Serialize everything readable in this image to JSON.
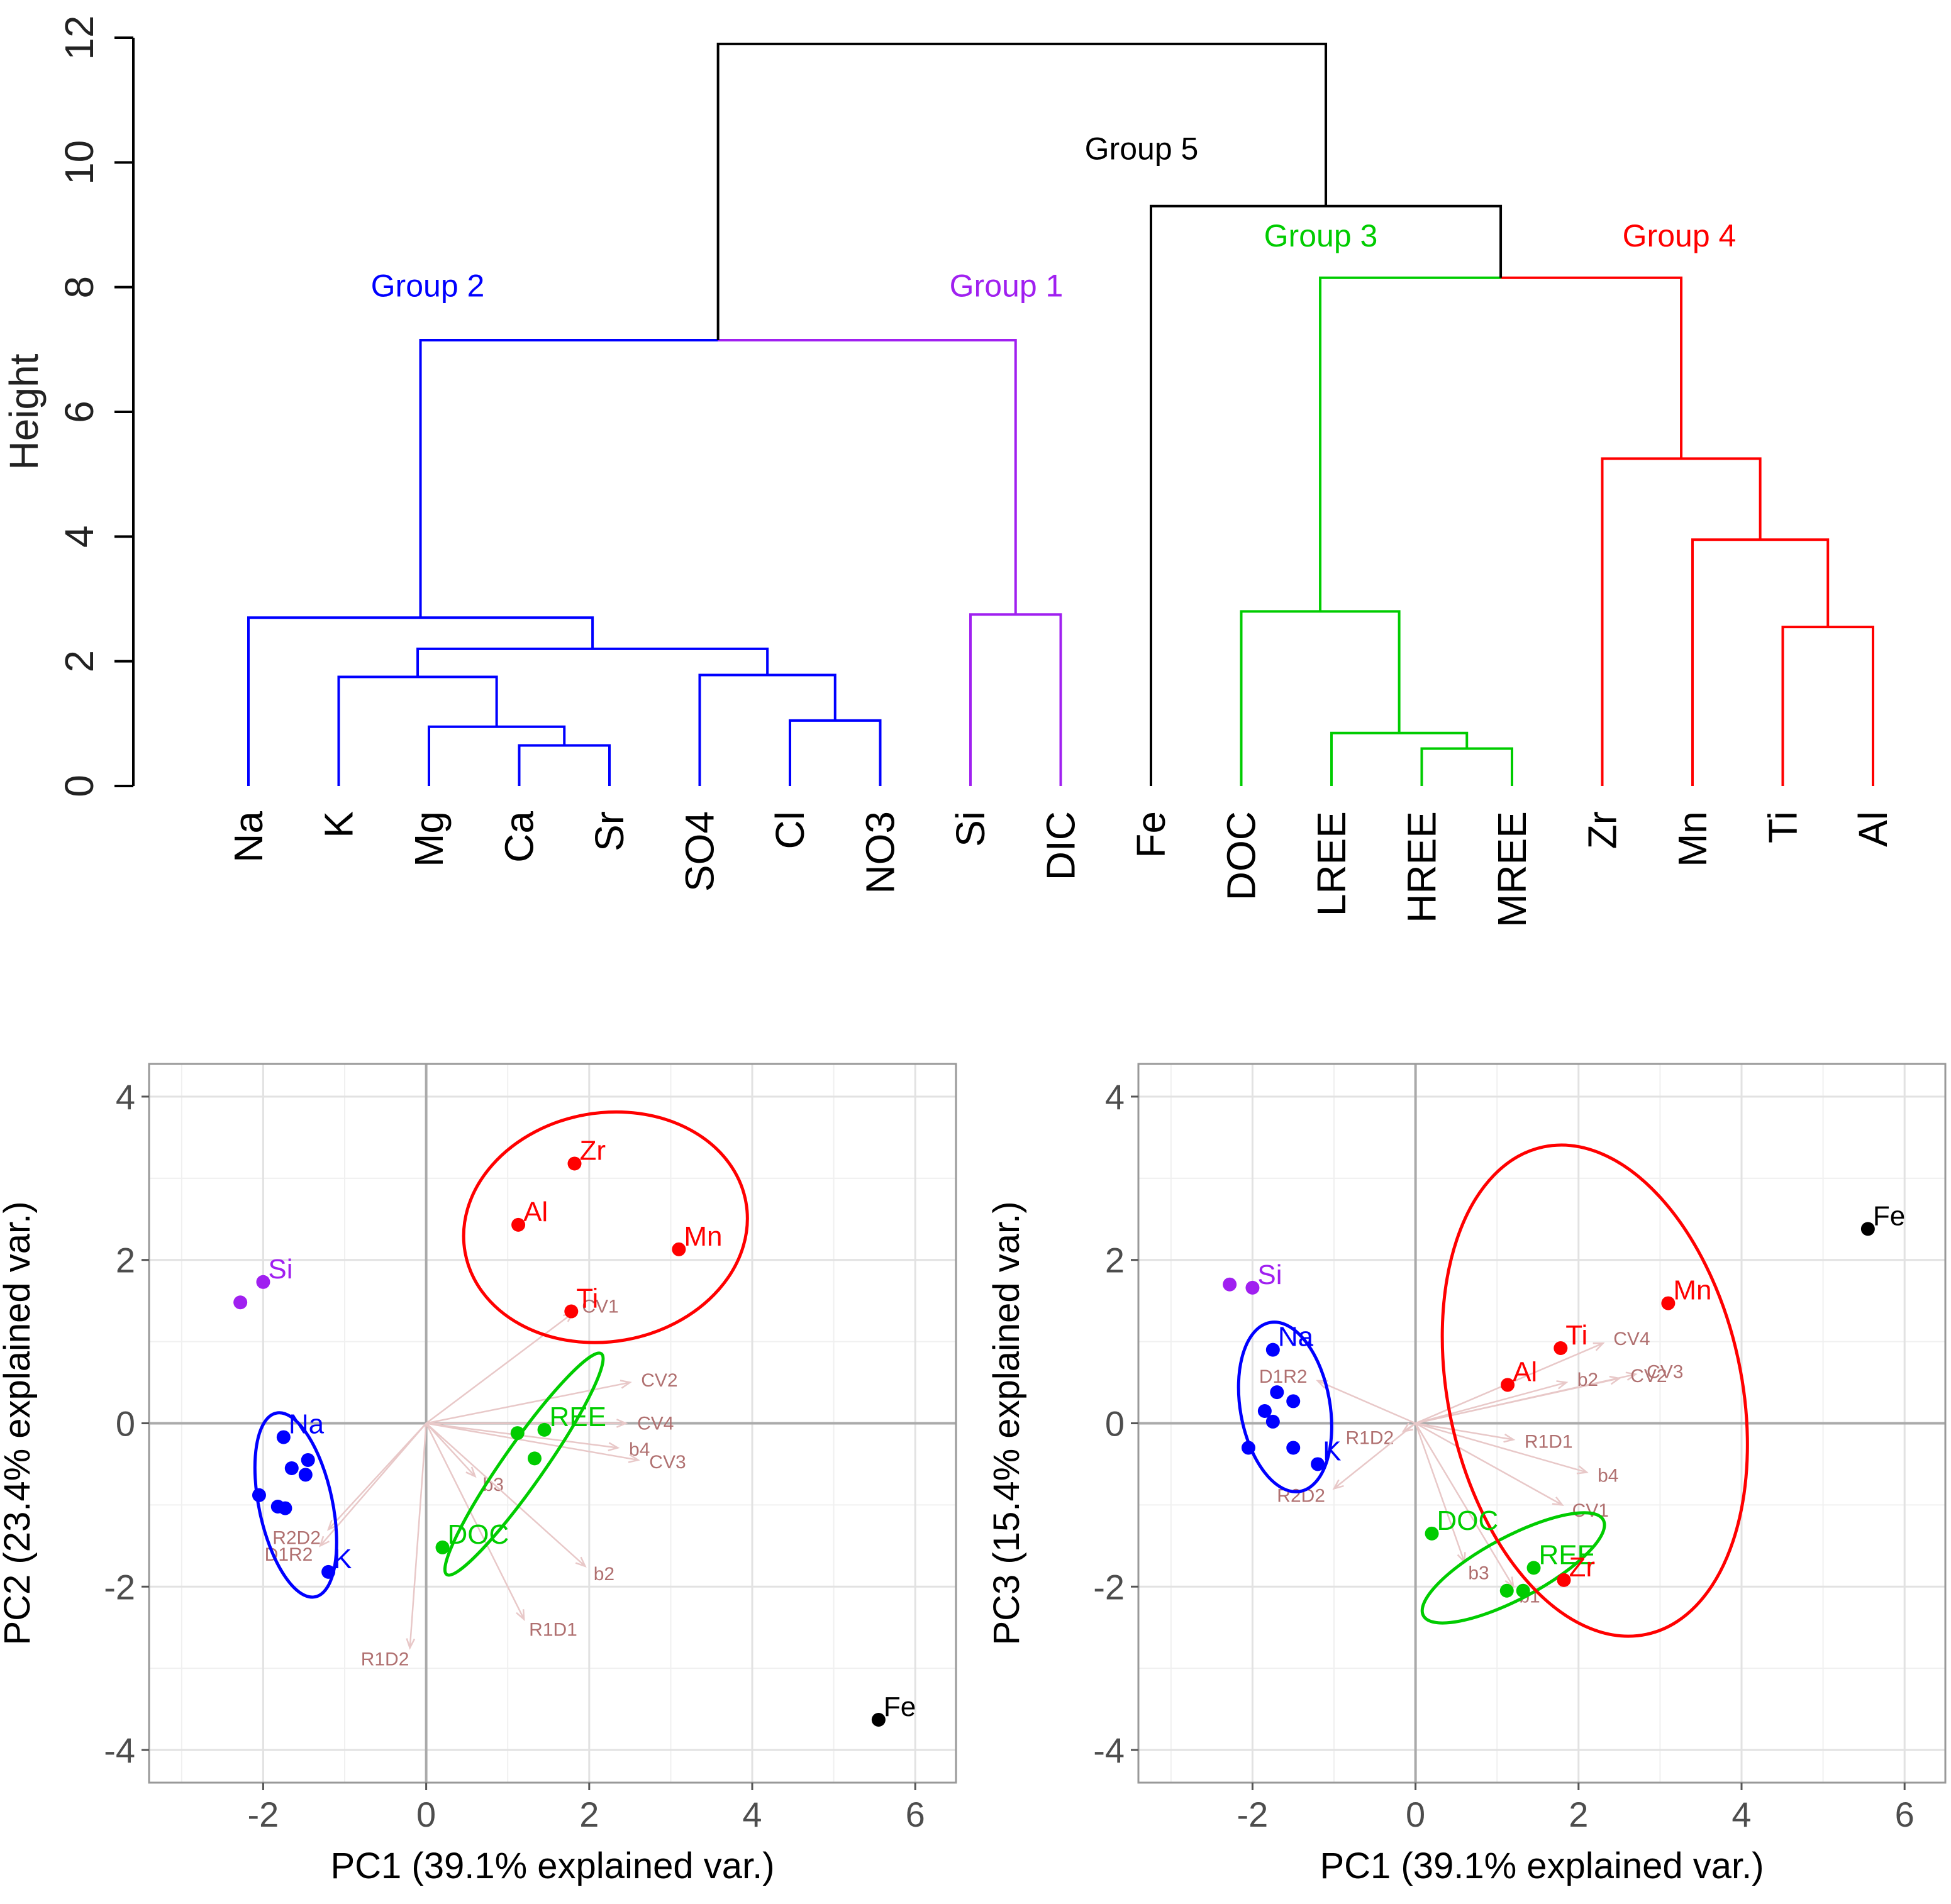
{
  "colors": {
    "group1": "#a020f0",
    "group2": "#0000ff",
    "group3": "#00cc00",
    "group4": "#ff0000",
    "group5": "#000000",
    "vector": "#b07070"
  },
  "chart_data": [
    {
      "type": "dendrogram",
      "ylabel": "Height",
      "ylim": [
        0,
        12
      ],
      "yticks": [
        "0",
        "2",
        "4",
        "6",
        "8",
        "10",
        "12"
      ],
      "leaves": [
        "Na",
        "K",
        "Mg",
        "Ca",
        "Sr",
        "SO4",
        "Cl",
        "NO3",
        "Si",
        "DIC",
        "Fe",
        "DOC",
        "LREE",
        "HREE",
        "MREE",
        "Zr",
        "Mn",
        "Ti",
        "Al"
      ],
      "group_labels": [
        {
          "name": "Group 2",
          "color": "blue"
        },
        {
          "name": "Group 1",
          "color": "purple"
        },
        {
          "name": "Group 5",
          "color": "black"
        },
        {
          "name": "Group 3",
          "color": "green"
        },
        {
          "name": "Group 4",
          "color": "red"
        }
      ],
      "merges": [
        {
          "a": "Ca",
          "b": "Sr",
          "height": 0.65
        },
        {
          "a": "Mg",
          "b": "Ca+Sr",
          "height": 0.95
        },
        {
          "a": "K",
          "b": "Mg+Ca+Sr",
          "height": 1.75
        },
        {
          "a": "Cl",
          "b": "NO3",
          "height": 1.05
        },
        {
          "a": "SO4",
          "b": "Cl+NO3",
          "height": 1.78
        },
        {
          "a": "K..Sr",
          "b": "SO4..NO3",
          "height": 2.2
        },
        {
          "a": "Na",
          "b": "K..NO3",
          "height": 2.7
        },
        {
          "a": "Si",
          "b": "DIC",
          "height": 2.75
        },
        {
          "a": "Group 2",
          "b": "Group 1",
          "height": 7.15
        },
        {
          "a": "HREE",
          "b": "MREE",
          "height": 0.6
        },
        {
          "a": "LREE",
          "b": "HREE+MREE",
          "height": 0.85
        },
        {
          "a": "DOC",
          "b": "REE",
          "height": 2.8
        },
        {
          "a": "Ti",
          "b": "Al",
          "height": 2.55
        },
        {
          "a": "Mn",
          "b": "Ti+Al",
          "height": 3.95
        },
        {
          "a": "Zr",
          "b": "Mn+Ti+Al",
          "height": 5.25
        },
        {
          "a": "Group 3",
          "b": "Group 4",
          "height": 8.15
        },
        {
          "a": "Fe",
          "b": "Group 3+4",
          "height": 9.3
        },
        {
          "a": "Group 1+2",
          "b": "Group 3+4+5",
          "height": 11.9
        }
      ]
    },
    {
      "type": "scatter",
      "title": "",
      "xlabel": "PC1 (39.1% explained var.)",
      "ylabel": "PC2 (23.4% explained var.)",
      "xlim": [
        -3.4,
        6.5
      ],
      "ylim": [
        -4.4,
        4.4
      ],
      "xticks": [
        "-2",
        "0",
        "2",
        "4",
        "6"
      ],
      "yticks": [
        "4",
        "2",
        "0",
        "-2",
        "-4"
      ],
      "points": [
        {
          "label": "Si",
          "x": -2.0,
          "y": 1.73,
          "group": "group1"
        },
        {
          "label": "",
          "x": -2.28,
          "y": 1.48,
          "group": "group1"
        },
        {
          "label": "Na",
          "x": -1.75,
          "y": -0.17,
          "group": "group2"
        },
        {
          "label": "",
          "x": -1.65,
          "y": -0.55,
          "group": "group2"
        },
        {
          "label": "",
          "x": -1.45,
          "y": -0.45,
          "group": "group2"
        },
        {
          "label": "",
          "x": -1.48,
          "y": -0.63,
          "group": "group2"
        },
        {
          "label": "",
          "x": -2.05,
          "y": -0.88,
          "group": "group2"
        },
        {
          "label": "",
          "x": -1.82,
          "y": -1.02,
          "group": "group2"
        },
        {
          "label": "",
          "x": -1.73,
          "y": -1.04,
          "group": "group2"
        },
        {
          "label": "K",
          "x": -1.2,
          "y": -1.82,
          "group": "group2"
        },
        {
          "label": "REE",
          "x": 1.45,
          "y": -0.08,
          "group": "group3"
        },
        {
          "label": "",
          "x": 1.12,
          "y": -0.12,
          "group": "group3"
        },
        {
          "label": "",
          "x": 1.33,
          "y": -0.43,
          "group": "group3"
        },
        {
          "label": "DOC",
          "x": 0.2,
          "y": -1.52,
          "group": "group3"
        },
        {
          "label": "Zr",
          "x": 1.82,
          "y": 3.18,
          "group": "group4"
        },
        {
          "label": "Al",
          "x": 1.13,
          "y": 2.43,
          "group": "group4"
        },
        {
          "label": "Mn",
          "x": 3.1,
          "y": 2.13,
          "group": "group4"
        },
        {
          "label": "Ti",
          "x": 1.78,
          "y": 1.37,
          "group": "group4"
        },
        {
          "label": "Fe",
          "x": 5.55,
          "y": -3.63,
          "group": "group5"
        }
      ],
      "vectors": [
        {
          "label": "CV1",
          "x": 1.8,
          "y": 1.35
        },
        {
          "label": "CV2",
          "x": 2.5,
          "y": 0.5
        },
        {
          "label": "CV4",
          "x": 2.45,
          "y": 0.0
        },
        {
          "label": "b4",
          "x": 2.35,
          "y": -0.3
        },
        {
          "label": "CV3",
          "x": 2.6,
          "y": -0.45
        },
        {
          "label": "b3",
          "x": 0.6,
          "y": -0.65
        },
        {
          "label": "b2",
          "x": 1.95,
          "y": -1.75
        },
        {
          "label": "R1D1",
          "x": 1.2,
          "y": -2.4
        },
        {
          "label": "R1D2",
          "x": -0.2,
          "y": -2.75
        },
        {
          "label": "R2D2",
          "x": -1.2,
          "y": -1.3
        },
        {
          "label": "D1R2",
          "x": -1.3,
          "y": -1.5
        }
      ],
      "ellipses": [
        {
          "group": "group2",
          "center_x": -1.6,
          "center_y": -1.0,
          "rx": 0.45,
          "ry": 1.15,
          "angle_deg": -12
        },
        {
          "group": "group3",
          "center_x": 1.2,
          "center_y": -0.5,
          "rx": 0.25,
          "ry": 1.65,
          "angle_deg": 35
        },
        {
          "group": "group4",
          "center_x": 2.2,
          "center_y": 2.4,
          "rx": 1.75,
          "ry": 1.4,
          "angle_deg": -10
        }
      ]
    },
    {
      "type": "scatter",
      "title": "",
      "xlabel": "PC1 (39.1% explained var.)",
      "ylabel": "PC3 (15.4% explained var.)",
      "xlim": [
        -3.4,
        6.5
      ],
      "ylim": [
        -4.4,
        4.4
      ],
      "xticks": [
        "-2",
        "0",
        "2",
        "4",
        "6"
      ],
      "yticks": [
        "4",
        "2",
        "0",
        "-2",
        "-4"
      ],
      "points": [
        {
          "label": "Si",
          "x": -2.0,
          "y": 1.66,
          "group": "group1"
        },
        {
          "label": "",
          "x": -2.28,
          "y": 1.7,
          "group": "group1"
        },
        {
          "label": "Na",
          "x": -1.75,
          "y": 0.9,
          "group": "group2"
        },
        {
          "label": "",
          "x": -1.7,
          "y": 0.38,
          "group": "group2"
        },
        {
          "label": "",
          "x": -1.5,
          "y": 0.27,
          "group": "group2"
        },
        {
          "label": "",
          "x": -1.85,
          "y": 0.15,
          "group": "group2"
        },
        {
          "label": "",
          "x": -1.75,
          "y": 0.02,
          "group": "group2"
        },
        {
          "label": "",
          "x": -2.05,
          "y": -0.3,
          "group": "group2"
        },
        {
          "label": "",
          "x": -1.5,
          "y": -0.3,
          "group": "group2"
        },
        {
          "label": "K",
          "x": -1.2,
          "y": -0.5,
          "group": "group2"
        },
        {
          "label": "DOC",
          "x": 0.2,
          "y": -1.35,
          "group": "group3"
        },
        {
          "label": "REE",
          "x": 1.45,
          "y": -1.77,
          "group": "group3"
        },
        {
          "label": "",
          "x": 1.12,
          "y": -2.05,
          "group": "group3"
        },
        {
          "label": "",
          "x": 1.32,
          "y": -2.05,
          "group": "group3"
        },
        {
          "label": "Zr",
          "x": 1.82,
          "y": -1.92,
          "group": "group4"
        },
        {
          "label": "Al",
          "x": 1.13,
          "y": 0.47,
          "group": "group4"
        },
        {
          "label": "Mn",
          "x": 3.1,
          "y": 1.47,
          "group": "group4"
        },
        {
          "label": "Ti",
          "x": 1.78,
          "y": 0.92,
          "group": "group4"
        },
        {
          "label": "Fe",
          "x": 5.55,
          "y": 2.38,
          "group": "group5"
        }
      ],
      "vectors": [
        {
          "label": "CV4",
          "x": 2.3,
          "y": 0.98
        },
        {
          "label": "CV3",
          "x": 2.7,
          "y": 0.6
        },
        {
          "label": "CV2",
          "x": 2.5,
          "y": 0.55
        },
        {
          "label": "b2",
          "x": 1.85,
          "y": 0.5
        },
        {
          "label": "R1D1",
          "x": 1.2,
          "y": -0.2
        },
        {
          "label": "b4",
          "x": 2.1,
          "y": -0.6
        },
        {
          "label": "CV1",
          "x": 1.8,
          "y": -1.0
        },
        {
          "label": "b3",
          "x": 0.6,
          "y": -1.7
        },
        {
          "label": "b1",
          "x": 1.2,
          "y": -2.0
        },
        {
          "label": "D1R2",
          "x": -1.2,
          "y": 0.52
        },
        {
          "label": "R1D2",
          "x": -0.15,
          "y": -0.1
        },
        {
          "label": "R2D2",
          "x": -1.0,
          "y": -0.8
        }
      ],
      "ellipses": [
        {
          "group": "group2",
          "center_x": -1.6,
          "center_y": 0.2,
          "rx": 0.55,
          "ry": 1.05,
          "angle_deg": -10
        },
        {
          "group": "group3",
          "center_x": 1.2,
          "center_y": -1.77,
          "rx": 1.25,
          "ry": 0.38,
          "angle_deg": -28
        },
        {
          "group": "group4",
          "center_x": 2.2,
          "center_y": 0.4,
          "rx": 1.8,
          "ry": 3.05,
          "angle_deg": -12
        }
      ]
    }
  ]
}
